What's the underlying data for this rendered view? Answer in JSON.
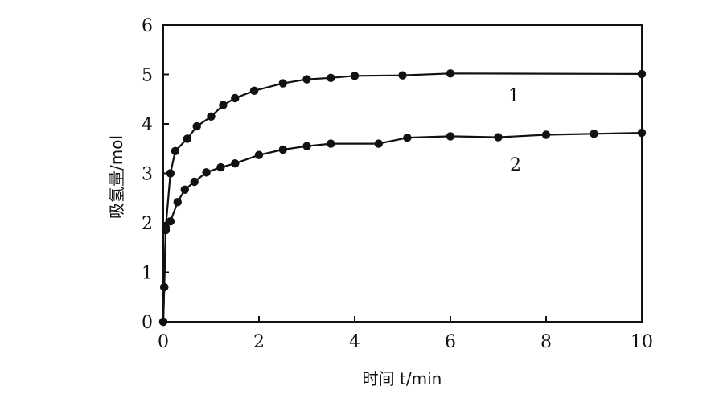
{
  "chart_data": {
    "type": "line",
    "xlabel": "时间 t/min",
    "ylabel": "吸氢量/mol",
    "xlim": [
      0,
      10
    ],
    "ylim": [
      0,
      6
    ],
    "x_ticks": [
      "0",
      "2",
      "4",
      "6",
      "8",
      "10"
    ],
    "y_ticks": [
      "0",
      "1",
      "2",
      "3",
      "4",
      "5",
      "6"
    ],
    "grid": false,
    "series": [
      {
        "name": "1",
        "points": [
          [
            0,
            0
          ],
          [
            0.02,
            0.7
          ],
          [
            0.05,
            1.9
          ],
          [
            0.15,
            3.0
          ],
          [
            0.25,
            3.45
          ],
          [
            0.5,
            3.7
          ],
          [
            0.7,
            3.95
          ],
          [
            1.0,
            4.15
          ],
          [
            1.25,
            4.38
          ],
          [
            1.5,
            4.52
          ],
          [
            1.9,
            4.67
          ],
          [
            2.5,
            4.82
          ],
          [
            3.0,
            4.9
          ],
          [
            3.5,
            4.93
          ],
          [
            4.0,
            4.97
          ],
          [
            5.0,
            4.98
          ],
          [
            6.0,
            5.02
          ],
          [
            10.0,
            5.01
          ]
        ]
      },
      {
        "name": "2",
        "points": [
          [
            0,
            0
          ],
          [
            0.02,
            0.7
          ],
          [
            0.05,
            1.85
          ],
          [
            0.15,
            2.03
          ],
          [
            0.3,
            2.42
          ],
          [
            0.45,
            2.67
          ],
          [
            0.65,
            2.83
          ],
          [
            0.9,
            3.02
          ],
          [
            1.2,
            3.12
          ],
          [
            1.5,
            3.2
          ],
          [
            2.0,
            3.37
          ],
          [
            2.5,
            3.48
          ],
          [
            3.0,
            3.55
          ],
          [
            3.5,
            3.6
          ],
          [
            4.5,
            3.6
          ],
          [
            5.1,
            3.72
          ],
          [
            6.0,
            3.75
          ],
          [
            7.0,
            3.73
          ],
          [
            8.0,
            3.78
          ],
          [
            9.0,
            3.8
          ],
          [
            10.0,
            3.82
          ]
        ]
      }
    ]
  }
}
